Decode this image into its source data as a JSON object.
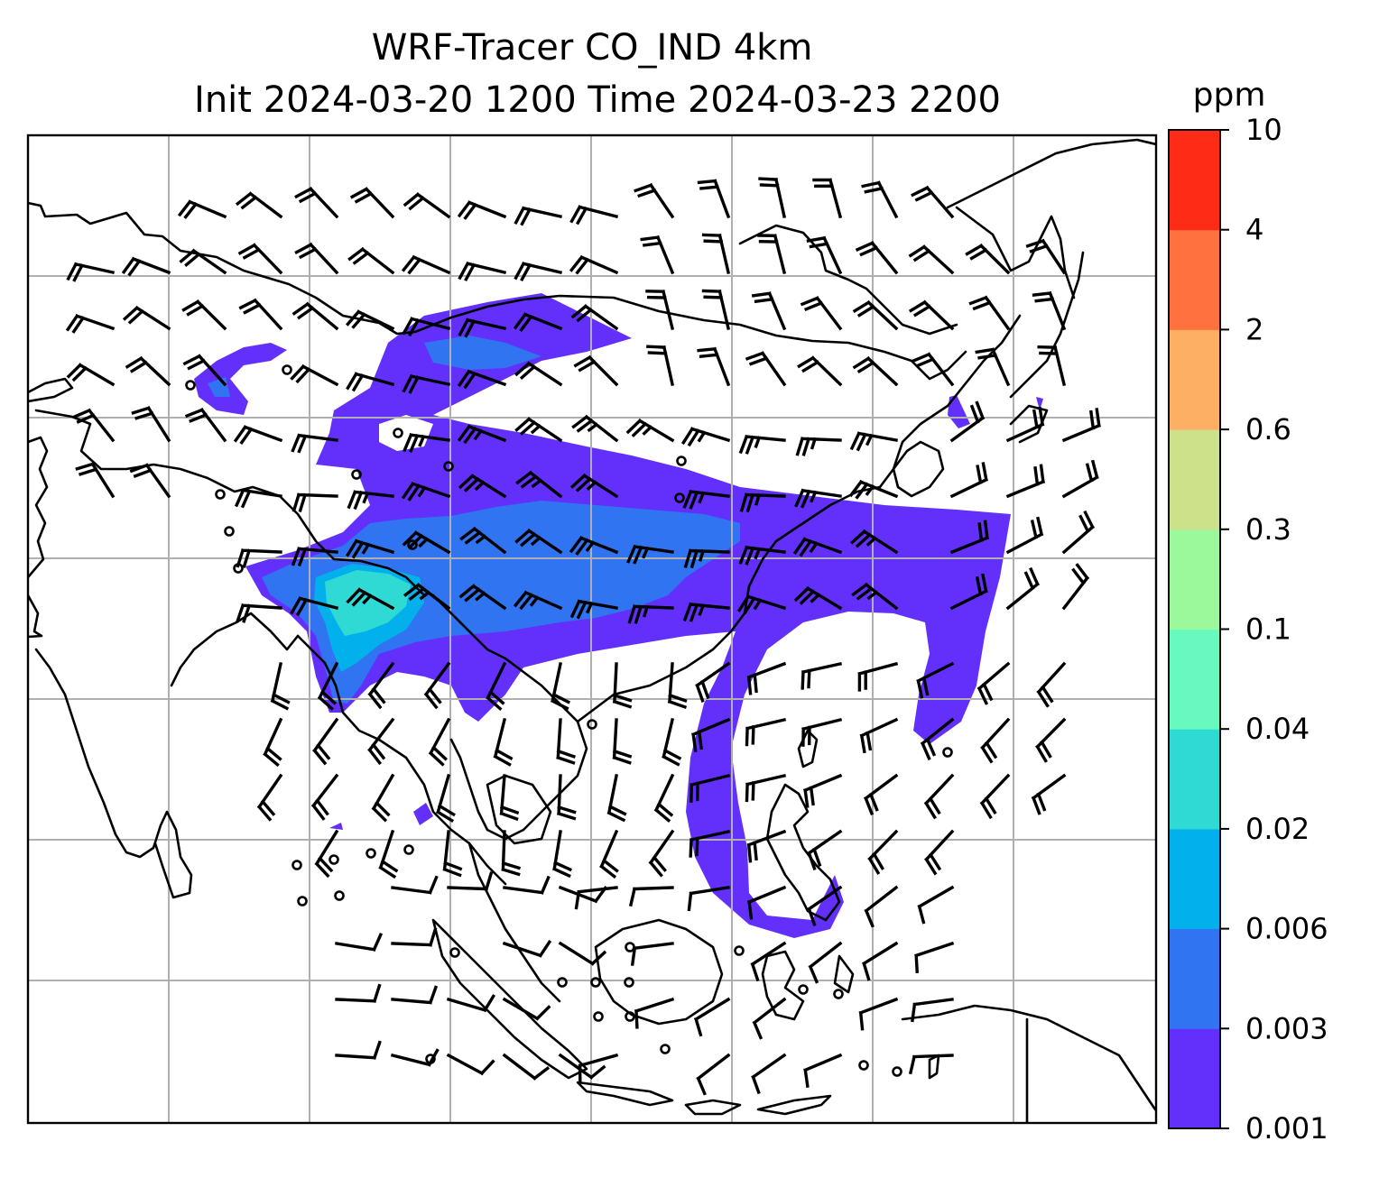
{
  "figure": {
    "title_line1": "WRF-Tracer CO_IND 4km",
    "title_line2": "Init 2024-03-20 1200 Time 2024-03-23 2200"
  },
  "colorbar": {
    "unit": "ppm",
    "levels": [
      "0.001",
      "0.003",
      "0.006",
      "0.02",
      "0.04",
      "0.1",
      "0.3",
      "0.6",
      "2",
      "4",
      "10"
    ],
    "colors": [
      "#6330fb",
      "#3074f1",
      "#02b1ec",
      "#2fdad4",
      "#67f9be",
      "#9bf99c",
      "#cde08a",
      "#fdb064",
      "#ff7240",
      "#fe2b16"
    ]
  },
  "map": {
    "projection": "lat-lon grid with coastlines and country borders",
    "gridlines": true,
    "overlay": "wind barbs (calm = circle)",
    "plume_colors": {
      "lowest": "#6330fb",
      "low": "#3074f1",
      "mid": "#02b1ec",
      "higher": "#2fdad4"
    }
  }
}
